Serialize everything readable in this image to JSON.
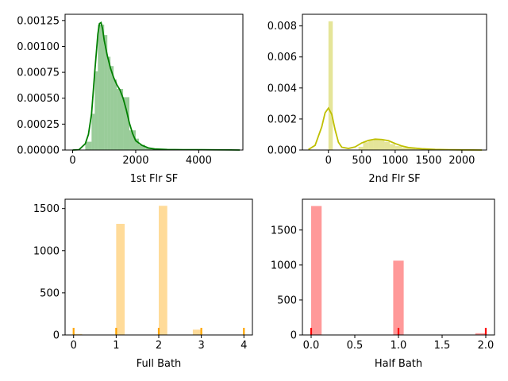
{
  "chart_data": [
    {
      "type": "bar",
      "subtype": "histogram-kde",
      "xlabel": "1st Flr SF",
      "ylabel": "",
      "color": "#008000",
      "xlim": [
        -240,
        5400
      ],
      "ylim": [
        0,
        0.00131
      ],
      "xticks": [
        0,
        2000,
        4000
      ],
      "xtick_labels": [
        "0",
        "2000",
        "4000"
      ],
      "yticks": [
        0,
        0.00025,
        0.0005,
        0.00075,
        0.001,
        0.00125
      ],
      "ytick_labels": [
        "0.00000",
        "0.00025",
        "0.00050",
        "0.00075",
        "0.00100",
        "0.00125"
      ],
      "bins": [
        {
          "x0": 400,
          "x1": 600,
          "value": 8e-05
        },
        {
          "x0": 600,
          "x1": 700,
          "value": 0.00035
        },
        {
          "x0": 700,
          "x1": 800,
          "value": 0.00076
        },
        {
          "x0": 800,
          "x1": 1000,
          "value": 0.00121
        },
        {
          "x0": 1000,
          "x1": 1100,
          "value": 0.00111
        },
        {
          "x0": 1100,
          "x1": 1200,
          "value": 0.0009
        },
        {
          "x0": 1200,
          "x1": 1300,
          "value": 0.00081
        },
        {
          "x0": 1300,
          "x1": 1400,
          "value": 0.00068
        },
        {
          "x0": 1400,
          "x1": 1600,
          "value": 0.00059
        },
        {
          "x0": 1600,
          "x1": 1800,
          "value": 0.00051
        },
        {
          "x0": 1800,
          "x1": 2000,
          "value": 0.00019
        },
        {
          "x0": 2000,
          "x1": 2100,
          "value": 0.00011
        },
        {
          "x0": 2100,
          "x1": 2300,
          "value": 5e-05
        },
        {
          "x0": 2300,
          "x1": 2500,
          "value": 2e-05
        },
        {
          "x0": 2500,
          "x1": 2800,
          "value": 1e-05
        }
      ],
      "kde": {
        "x": [
          0,
          200,
          400,
          500,
          600,
          700,
          800,
          850,
          900,
          950,
          1000,
          1100,
          1200,
          1300,
          1400,
          1500,
          1600,
          1700,
          1800,
          1900,
          2000,
          2200,
          2400,
          2600,
          3000,
          3500,
          4000,
          4500,
          5000,
          5300
        ],
        "y": [
          0,
          3e-06,
          6e-05,
          0.00015,
          0.00035,
          0.00075,
          0.00112,
          0.00122,
          0.00123,
          0.00117,
          0.00106,
          0.00091,
          0.00079,
          0.0007,
          0.00063,
          0.00058,
          0.0005,
          0.00039,
          0.00026,
          0.00016,
          9e-05,
          4.5e-05,
          2e-05,
          1e-05,
          5e-06,
          3e-06,
          3e-06,
          2e-06,
          1e-06,
          0
        ]
      }
    },
    {
      "type": "bar",
      "subtype": "histogram-kde",
      "xlabel": "2nd Flr SF",
      "ylabel": "",
      "color": "#bfbf00",
      "xlim": [
        -390,
        2370
      ],
      "ylim": [
        0,
        0.00875
      ],
      "xticks": [
        0,
        500,
        1000,
        1500,
        2000
      ],
      "xtick_labels": [
        "0",
        "500",
        "1000",
        "1500",
        "2000"
      ],
      "yticks": [
        0,
        0.002,
        0.004,
        0.006,
        0.008
      ],
      "ytick_labels": [
        "0.000",
        "0.002",
        "0.004",
        "0.006",
        "0.008"
      ],
      "bins": [
        {
          "x0": 0,
          "x1": 65,
          "value": 0.0083
        },
        {
          "x0": 450,
          "x1": 520,
          "value": 0.00021
        },
        {
          "x0": 520,
          "x1": 600,
          "value": 0.0005
        },
        {
          "x0": 600,
          "x1": 680,
          "value": 0.00061
        },
        {
          "x0": 680,
          "x1": 760,
          "value": 0.00067
        },
        {
          "x0": 760,
          "x1": 840,
          "value": 0.00064
        },
        {
          "x0": 840,
          "x1": 920,
          "value": 0.00052
        },
        {
          "x0": 920,
          "x1": 1000,
          "value": 0.00038
        },
        {
          "x0": 1000,
          "x1": 1100,
          "value": 0.00025
        },
        {
          "x0": 1100,
          "x1": 1300,
          "value": 0.00016
        },
        {
          "x0": 1300,
          "x1": 1600,
          "value": 6e-05
        }
      ],
      "kde": {
        "x": [
          -300,
          -200,
          -100,
          -50,
          0,
          50,
          100,
          150,
          200,
          300,
          400,
          500,
          600,
          700,
          800,
          900,
          1000,
          1100,
          1200,
          1400,
          1600,
          1800,
          2000,
          2300
        ],
        "y": [
          3e-05,
          0.0003,
          0.0015,
          0.0024,
          0.0027,
          0.0023,
          0.0013,
          0.0005,
          0.00018,
          0.0001,
          0.0002,
          0.00046,
          0.00062,
          0.0007,
          0.00068,
          0.0006,
          0.00042,
          0.00026,
          0.00016,
          8e-05,
          4e-05,
          2e-05,
          1e-05,
          0
        ]
      }
    },
    {
      "type": "bar",
      "subtype": "histogram",
      "xlabel": "Full Bath",
      "ylabel": "",
      "color": "#ffa500",
      "xlim": [
        -0.2,
        4.2
      ],
      "ylim": [
        0,
        1610
      ],
      "xticks": [
        0,
        1,
        2,
        3,
        4
      ],
      "xtick_labels": [
        "0",
        "1",
        "2",
        "3",
        "4"
      ],
      "yticks": [
        0,
        500,
        1000,
        1500
      ],
      "ytick_labels": [
        "0",
        "500",
        "1000",
        "1500"
      ],
      "bin_width": 0.2,
      "bins": [
        {
          "x0": 0,
          "value": 12
        },
        {
          "x0": 1,
          "value": 1318
        },
        {
          "x0": 2,
          "value": 1532
        },
        {
          "x0": 2.8,
          "value": 63
        },
        {
          "x0": 3.8,
          "value": 4
        }
      ],
      "rug": [
        0,
        1,
        2,
        3,
        4
      ]
    },
    {
      "type": "bar",
      "subtype": "histogram",
      "xlabel": "Half Bath",
      "ylabel": "",
      "color": "#ff0000",
      "xlim": [
        -0.1,
        2.1
      ],
      "ylim": [
        0,
        1940
      ],
      "xticks": [
        0,
        0.5,
        1,
        1.5,
        2
      ],
      "xtick_labels": [
        "0.0",
        "0.5",
        "1.0",
        "1.5",
        "2.0"
      ],
      "yticks": [
        0,
        500,
        1000,
        1500
      ],
      "ytick_labels": [
        "0",
        "500",
        "1000",
        "1500"
      ],
      "bin_width": 0.12,
      "bins": [
        {
          "x0": 0,
          "value": 1843
        },
        {
          "x0": 0.94,
          "value": 1062
        },
        {
          "x0": 1.88,
          "value": 25
        }
      ],
      "rug": [
        0,
        1,
        2
      ]
    }
  ]
}
